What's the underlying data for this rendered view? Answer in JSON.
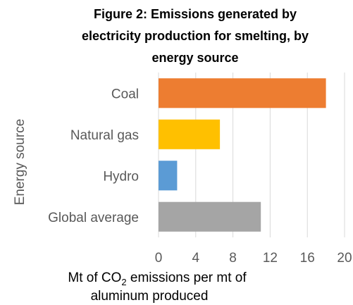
{
  "chart_data": {
    "type": "bar",
    "orientation": "horizontal",
    "title_lines": [
      "Figure 2: Emissions generated by",
      "electricity production for smelting, by",
      "energy source"
    ],
    "ylabel": "Energy source",
    "xlabel_parts": {
      "line1_before": "Mt of CO",
      "subscript": "2",
      "line1_after": " emissions per mt of",
      "line2": "aluminum produced"
    },
    "categories": [
      "Coal",
      "Natural gas",
      "Hydro",
      "Global average"
    ],
    "values": [
      18,
      6.6,
      2,
      11
    ],
    "colors": [
      "#ed7d31",
      "#ffc000",
      "#5b9bd5",
      "#a5a5a5"
    ],
    "xlim": [
      0,
      20
    ],
    "xticks": [
      "0",
      "4",
      "8",
      "12",
      "16",
      "20"
    ],
    "grid": true,
    "legend": "none"
  }
}
